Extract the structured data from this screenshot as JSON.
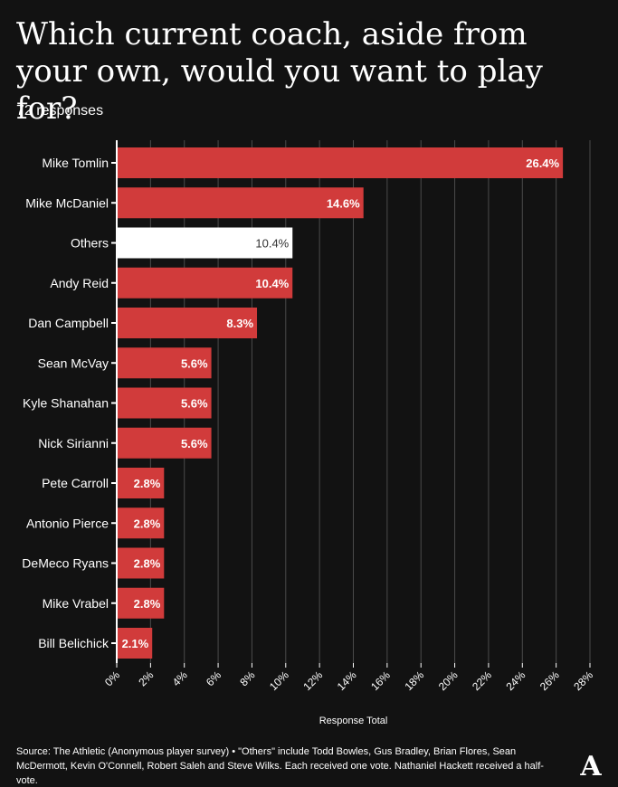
{
  "title": "Which current coach, aside from your own, would you want to play for?",
  "subtitle": "72 responses",
  "footer": {
    "source": "Source: The Athletic (Anonymous player survey) • \"Others\" include Todd Bowles, Gus Bradley, Brian Flores, Sean McDermott, Kevin O'Connell, Robert Saleh and Steve Wilks. Each received one vote. Nathaniel Hackett received a half-vote."
  },
  "logo_text": "A",
  "colors": {
    "background": "#121212",
    "bar": "#d13b3b",
    "highlight_bar": "#ffffff",
    "grid": "#4a4a4a",
    "text": "#ffffff"
  },
  "chart_data": {
    "type": "bar",
    "orientation": "horizontal",
    "xlabel": "Response Total",
    "xlim": [
      0,
      28
    ],
    "x_ticks": [
      "0%",
      "2%",
      "4%",
      "6%",
      "8%",
      "10%",
      "12%",
      "14%",
      "16%",
      "18%",
      "20%",
      "22%",
      "24%",
      "26%",
      "28%"
    ],
    "grid": "vertical",
    "categories": [
      "Mike Tomlin",
      "Mike McDaniel",
      "Others",
      "Andy Reid",
      "Dan Campbell",
      "Sean McVay",
      "Kyle Shanahan",
      "Nick Sirianni",
      "Pete Carroll",
      "Antonio Pierce",
      "DeMeco Ryans",
      "Mike Vrabel",
      "Bill Belichick"
    ],
    "values": [
      26.4,
      14.6,
      10.4,
      10.4,
      8.3,
      5.6,
      5.6,
      5.6,
      2.8,
      2.8,
      2.8,
      2.8,
      2.1
    ],
    "labels": [
      "26.4%",
      "14.6%",
      "10.4%",
      "10.4%",
      "8.3%",
      "5.6%",
      "5.6%",
      "5.6%",
      "2.8%",
      "2.8%",
      "2.8%",
      "2.8%",
      "2.1%"
    ],
    "highlight_category": "Others"
  }
}
